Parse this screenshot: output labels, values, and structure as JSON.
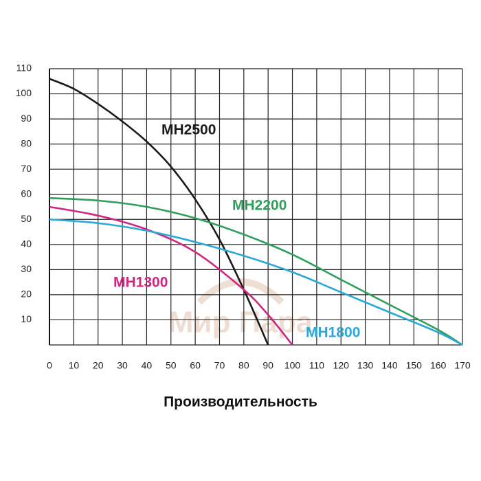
{
  "chart_data": {
    "type": "line",
    "x_label": "Производительность",
    "watermark": "Мир Пара",
    "xlim": [
      0,
      170
    ],
    "ylim": [
      0,
      110
    ],
    "xticks": [
      0,
      10,
      20,
      30,
      40,
      50,
      60,
      70,
      80,
      90,
      100,
      110,
      120,
      130,
      140,
      150,
      160,
      170
    ],
    "yticks": [
      10,
      20,
      30,
      40,
      50,
      60,
      70,
      80,
      90,
      100,
      110
    ],
    "grid": true,
    "series": [
      {
        "name": "MH2500",
        "color": "#1a1a1a",
        "x": [
          0,
          10,
          20,
          30,
          40,
          50,
          60,
          70,
          80,
          90
        ],
        "values": [
          106,
          102,
          96,
          89,
          81,
          71,
          58,
          42,
          22,
          0
        ]
      },
      {
        "name": "MH2200",
        "color": "#2e9e5b",
        "x": [
          0,
          20,
          40,
          60,
          80,
          100,
          120,
          140,
          160,
          170
        ],
        "values": [
          58.5,
          57.5,
          55,
          50.5,
          44,
          36,
          26,
          16,
          6,
          0
        ]
      },
      {
        "name": "MH1300",
        "color": "#d0267f",
        "x": [
          0,
          20,
          40,
          60,
          80,
          90,
          100
        ],
        "values": [
          55,
          51.5,
          46,
          37,
          22,
          12,
          0
        ]
      },
      {
        "name": "MH1800",
        "color": "#2aa8d8",
        "x": [
          0,
          20,
          40,
          60,
          80,
          100,
          120,
          140,
          160,
          170
        ],
        "values": [
          50,
          48.5,
          45.5,
          41,
          35.5,
          29,
          21,
          13,
          5,
          0
        ]
      }
    ]
  }
}
